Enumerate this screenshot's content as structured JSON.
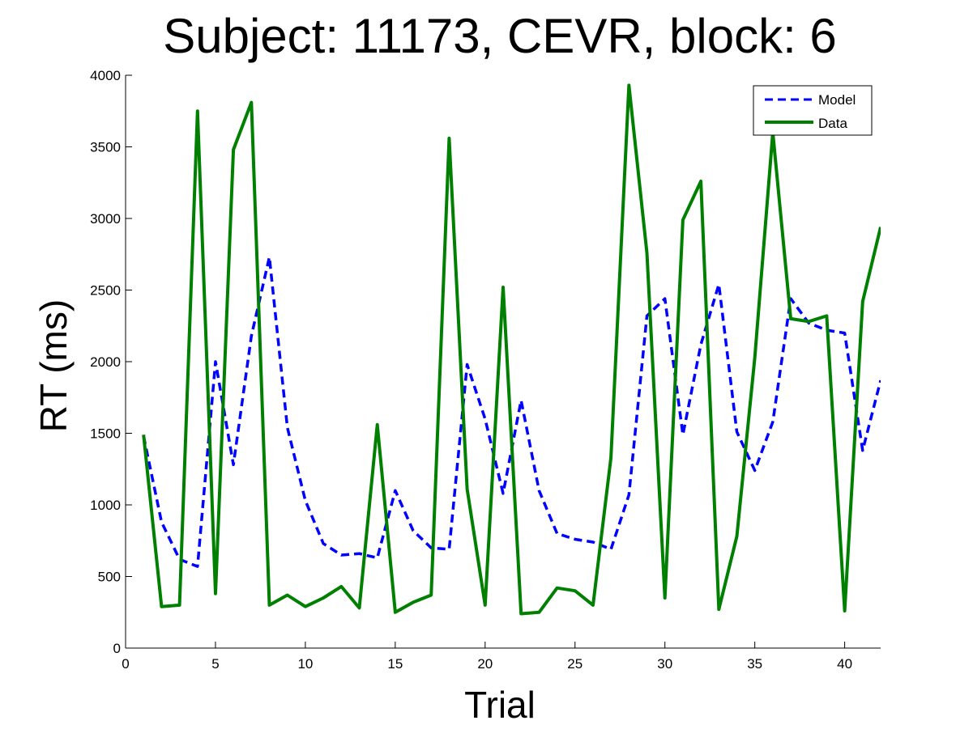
{
  "chart_data": {
    "type": "line",
    "title": "Subject: 11173, CEVR, block: 6",
    "xlabel": "Trial",
    "ylabel": "RT (ms)",
    "xlim": [
      0,
      42
    ],
    "ylim": [
      0,
      4000
    ],
    "xticks": [
      0,
      5,
      10,
      15,
      20,
      25,
      30,
      35,
      40
    ],
    "yticks": [
      0,
      500,
      1000,
      1500,
      2000,
      2500,
      3000,
      3500,
      4000
    ],
    "grid": false,
    "legend_position": "top-right",
    "x": [
      1,
      2,
      3,
      4,
      5,
      6,
      7,
      8,
      9,
      10,
      11,
      12,
      13,
      14,
      15,
      16,
      17,
      18,
      19,
      20,
      21,
      22,
      23,
      24,
      25,
      26,
      27,
      28,
      29,
      30,
      31,
      32,
      33,
      34,
      35,
      36,
      37,
      38,
      39,
      40,
      41,
      42
    ],
    "series": [
      {
        "name": "Model",
        "color": "#0000ff",
        "style": "dashed",
        "values": [
          1480,
          880,
          620,
          570,
          2000,
          1280,
          2180,
          2730,
          1540,
          1030,
          730,
          650,
          660,
          630,
          1100,
          820,
          700,
          690,
          1980,
          1600,
          1080,
          1730,
          1100,
          800,
          760,
          740,
          690,
          1070,
          2320,
          2440,
          1490,
          2120,
          2540,
          1510,
          1240,
          1580,
          2440,
          2270,
          2220,
          2200,
          1380,
          1870
        ]
      },
      {
        "name": "Data",
        "color": "#008000",
        "style": "solid",
        "values": [
          1490,
          290,
          300,
          3750,
          380,
          3480,
          3810,
          300,
          370,
          290,
          350,
          430,
          280,
          1560,
          250,
          320,
          370,
          3560,
          1110,
          300,
          2520,
          240,
          250,
          420,
          400,
          300,
          1330,
          3930,
          2760,
          350,
          2990,
          3260,
          270,
          780,
          2030,
          3600,
          2300,
          2280,
          2320,
          260,
          2420,
          2940
        ]
      }
    ]
  }
}
